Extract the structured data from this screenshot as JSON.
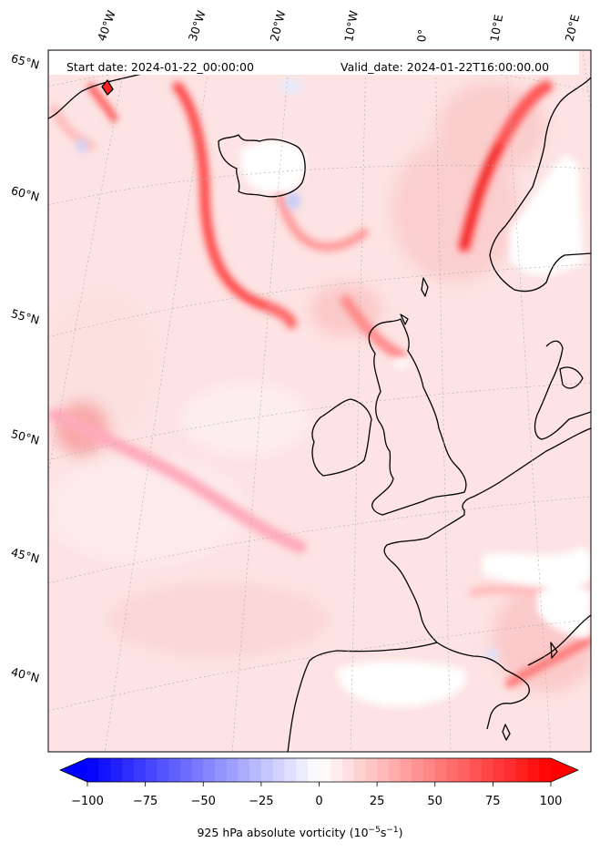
{
  "header": {
    "start_date": "Start date: 2024-01-22_00:00:00",
    "valid_date": "Valid_date: 2024-01-22T16:00:00.00"
  },
  "longitude_labels": [
    "40°W",
    "30°W",
    "20°W",
    "10°W",
    "0°",
    "10°E",
    "20°E"
  ],
  "latitude_labels": [
    "65°N",
    "60°N",
    "55°N",
    "50°N",
    "45°N",
    "40°N"
  ],
  "colorbar": {
    "ticks": [
      "−100",
      "−75",
      "−50",
      "−25",
      "0",
      "25",
      "50",
      "75",
      "100"
    ],
    "min": -100,
    "max": 100,
    "label_prefix": "925 hPa absolute vorticity (10",
    "label_exp1": "−5",
    "label_mid": "s",
    "label_exp2": "−1",
    "label_suffix": ")",
    "colormap": "bwr",
    "extend": "both"
  },
  "colors": {
    "coastline": "#000000",
    "land_low": "#ffffff",
    "background_vorticity": "#fde0e0",
    "strong_positive": "#ff0000",
    "strong_negative": "#0000ff"
  }
}
